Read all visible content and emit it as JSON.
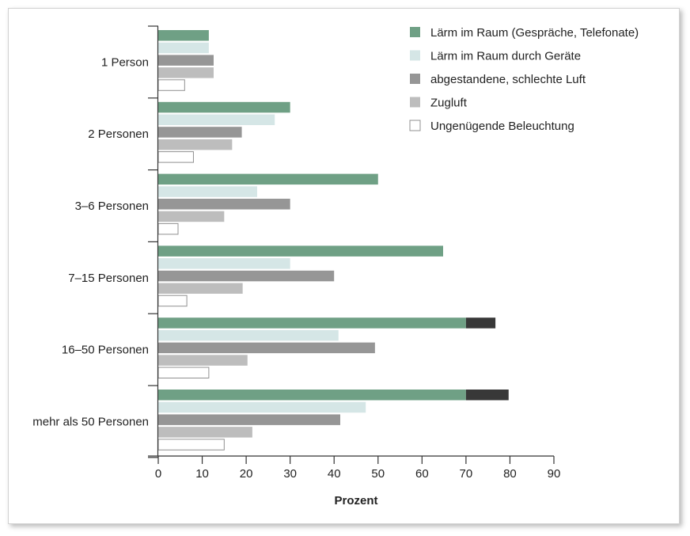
{
  "chart_data": {
    "type": "bar",
    "orientation": "horizontal",
    "xlabel": "Prozent",
    "xlim": [
      0,
      90
    ],
    "xticks": [
      0,
      10,
      20,
      30,
      40,
      50,
      60,
      70,
      80,
      90
    ],
    "categories": [
      "1 Person",
      "2 Personen",
      "3–6 Personen",
      "7–15 Personen",
      "16–50 Personen",
      "mehr als 50 Personen"
    ],
    "series": [
      {
        "name": "Lärm im Raum (Gespräche, Telefonate)",
        "color": "#6fa085",
        "values": [
          11.5,
          30,
          50,
          64.8,
          70,
          70
        ],
        "extension": [
          0,
          0,
          0,
          0,
          76.7,
          79.7
        ],
        "extension_color": "#383838"
      },
      {
        "name": "Lärm im Raum durch Geräte",
        "color": "#d5e6e6",
        "values": [
          11.5,
          26.5,
          22.5,
          30,
          41,
          47.2
        ]
      },
      {
        "name": "abgestandene, schlechte Luft",
        "color": "#969696",
        "values": [
          12.6,
          19,
          30,
          40,
          49.3,
          41.4
        ]
      },
      {
        "name": "Zugluft",
        "color": "#bdbdbd",
        "values": [
          12.6,
          16.8,
          15,
          19.2,
          20.3,
          21.4
        ]
      },
      {
        "name": "Ungenügende Beleuchtung",
        "color": "#ffffff",
        "stroke": "#909090",
        "values": [
          6,
          8,
          4.5,
          6.5,
          11.5,
          15
        ]
      }
    ],
    "legend_position": "top-right",
    "grid": false
  }
}
